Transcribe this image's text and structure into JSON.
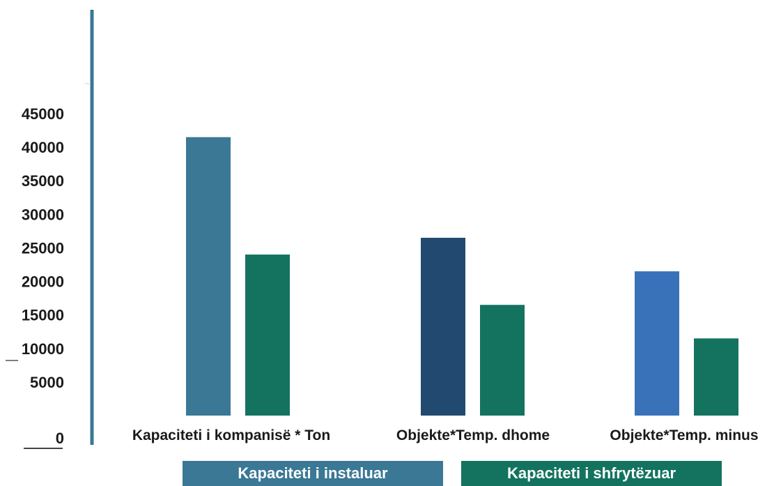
{
  "chart_data": {
    "type": "bar",
    "title": "",
    "xlabel": "",
    "ylabel": "",
    "categories": [
      "Kapaciteti i kompanisë * Ton",
      "Objekte*Temp. dhome",
      "Objekte*Temp. minus"
    ],
    "series": [
      {
        "name": "Kapaciteti i instaluar",
        "values": [
          41500,
          26500,
          21500
        ],
        "colors": [
          "#3a7895",
          "#224a70",
          "#3a72b9"
        ]
      },
      {
        "name": "Kapaciteti i shfrytëzuar",
        "values": [
          24000,
          16500,
          11500
        ],
        "colors": [
          "#13735f",
          "#13735f",
          "#13735f"
        ]
      }
    ],
    "yticks": [
      "45000",
      "40000",
      "35000",
      "30000",
      "25000",
      "20000",
      "15000",
      "10000",
      "5000",
      "0"
    ],
    "ylim": [
      0,
      45000
    ],
    "grid": false,
    "legend": "bottom"
  },
  "legend": {
    "items": [
      {
        "label": "Kapaciteti i instaluar",
        "color": "#3a7895"
      },
      {
        "label": "Kapaciteti i shfrytëzuar",
        "color": "#13735f"
      }
    ]
  },
  "colors": {
    "axis": "#3a7895"
  }
}
